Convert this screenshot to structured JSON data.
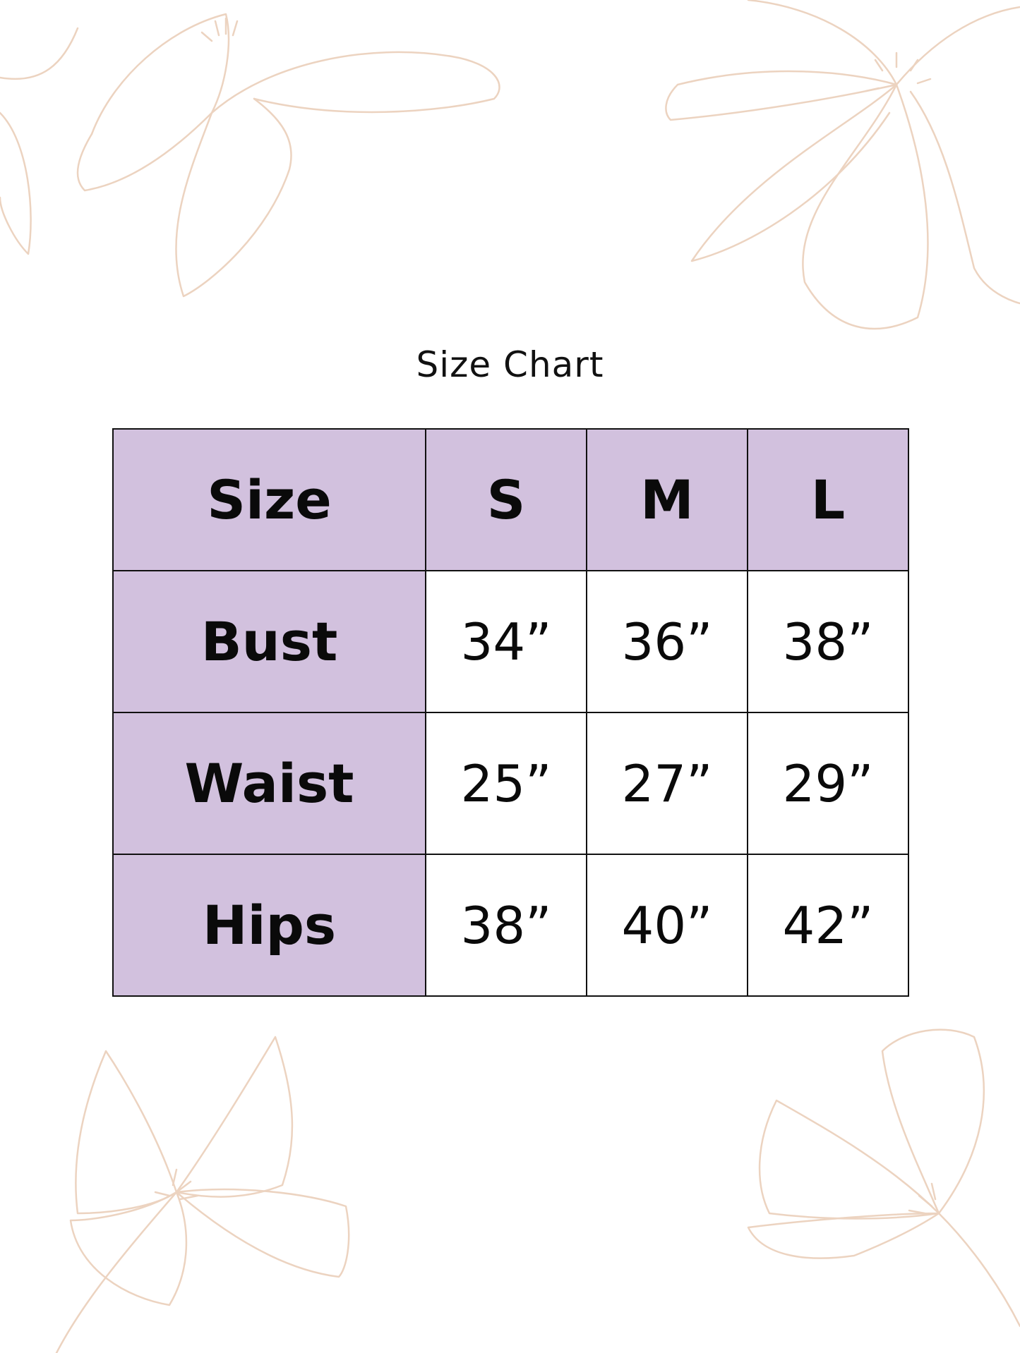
{
  "title": "Size Chart",
  "colors": {
    "header_fill": "#d2c1de",
    "border": "#111111",
    "floral_outline": "#ecd3c0"
  },
  "table": {
    "header": [
      "Size",
      "S",
      "M",
      "L"
    ],
    "rows": [
      {
        "label": "Bust",
        "values": [
          "34”",
          "36”",
          "38”"
        ]
      },
      {
        "label": "Waist",
        "values": [
          "25”",
          "27”",
          "29”"
        ]
      },
      {
        "label": "Hips",
        "values": [
          "38”",
          "40”",
          "42”"
        ]
      }
    ]
  }
}
